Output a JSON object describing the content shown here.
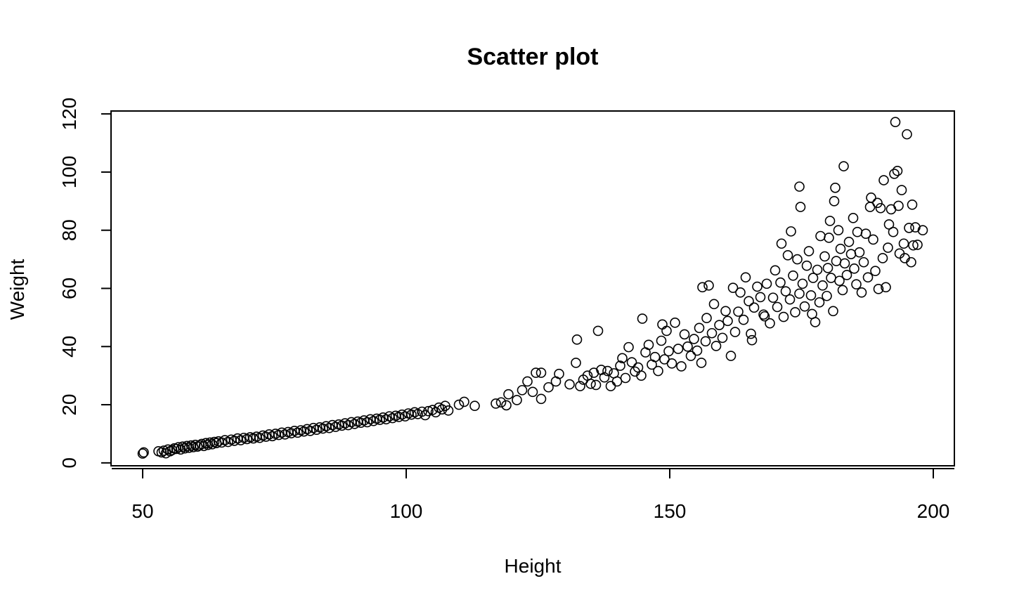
{
  "chart_data": {
    "type": "scatter",
    "title": "Scatter plot",
    "xlabel": "Height",
    "ylabel": "Weight",
    "xlim": [
      44,
      204
    ],
    "ylim": [
      -1,
      121
    ],
    "xticks": [
      50,
      100,
      150,
      200
    ],
    "yticks": [
      0,
      20,
      40,
      60,
      80,
      100,
      120
    ],
    "grid": false,
    "legend": "none",
    "marker": "open-circle",
    "colors": {
      "marker": "#000000",
      "axis": "#000000",
      "background": "#ffffff"
    },
    "points": [
      [
        50,
        3.2
      ],
      [
        50.2,
        3.6
      ],
      [
        53,
        4
      ],
      [
        53.6,
        3.6
      ],
      [
        54,
        4.2
      ],
      [
        54.4,
        3.3
      ],
      [
        54.8,
        4.6
      ],
      [
        55.2,
        4
      ],
      [
        55.6,
        4.4
      ],
      [
        56,
        5
      ],
      [
        56.4,
        4.8
      ],
      [
        56.8,
        5.4
      ],
      [
        57.2,
        4.6
      ],
      [
        57.6,
        5.6
      ],
      [
        58,
        5
      ],
      [
        58.4,
        5.8
      ],
      [
        58.8,
        5.2
      ],
      [
        59.2,
        6
      ],
      [
        59.6,
        5.4
      ],
      [
        60,
        6.2
      ],
      [
        60.4,
        5.6
      ],
      [
        60.8,
        6
      ],
      [
        61.2,
        6.5
      ],
      [
        61.6,
        5.8
      ],
      [
        62,
        6.8
      ],
      [
        62.4,
        6.2
      ],
      [
        62.8,
        7
      ],
      [
        63.2,
        6.4
      ],
      [
        63.6,
        7.2
      ],
      [
        64,
        6.8
      ],
      [
        64.4,
        7.4
      ],
      [
        65,
        7
      ],
      [
        65.6,
        7.8
      ],
      [
        66.2,
        7.2
      ],
      [
        66.8,
        8
      ],
      [
        67.4,
        7.6
      ],
      [
        68,
        8.4
      ],
      [
        68.6,
        7.8
      ],
      [
        69.2,
        8.6
      ],
      [
        69.8,
        8.2
      ],
      [
        70.4,
        8.8
      ],
      [
        71,
        8.4
      ],
      [
        71.6,
        9
      ],
      [
        72.2,
        8.6
      ],
      [
        72.8,
        9.4
      ],
      [
        73.4,
        9
      ],
      [
        74,
        9.8
      ],
      [
        74.6,
        9.2
      ],
      [
        75.2,
        10
      ],
      [
        75.8,
        9.6
      ],
      [
        76.4,
        10.4
      ],
      [
        77,
        9.8
      ],
      [
        77.6,
        10.6
      ],
      [
        78.2,
        10.2
      ],
      [
        78.8,
        11
      ],
      [
        79.4,
        10.4
      ],
      [
        80,
        11.2
      ],
      [
        80.6,
        10.8
      ],
      [
        81.2,
        11.6
      ],
      [
        81.8,
        11
      ],
      [
        82.4,
        12
      ],
      [
        83,
        11.4
      ],
      [
        83.6,
        12.2
      ],
      [
        84.2,
        11.8
      ],
      [
        84.8,
        12.6
      ],
      [
        85.4,
        12
      ],
      [
        86,
        13
      ],
      [
        86.6,
        12.4
      ],
      [
        87.2,
        13.2
      ],
      [
        87.8,
        12.8
      ],
      [
        88.4,
        13.6
      ],
      [
        89,
        13
      ],
      [
        89.6,
        14
      ],
      [
        90.2,
        13.4
      ],
      [
        90.8,
        14.2
      ],
      [
        91.4,
        13.8
      ],
      [
        92,
        14.6
      ],
      [
        92.6,
        14
      ],
      [
        93.2,
        15
      ],
      [
        93.8,
        14.4
      ],
      [
        94.4,
        15.2
      ],
      [
        95,
        14.8
      ],
      [
        95.6,
        15.6
      ],
      [
        96.2,
        15
      ],
      [
        96.8,
        16
      ],
      [
        97.4,
        15.4
      ],
      [
        98,
        16.2
      ],
      [
        98.6,
        15.8
      ],
      [
        99.2,
        16.6
      ],
      [
        99.8,
        16
      ],
      [
        100.4,
        17
      ],
      [
        101,
        16.6
      ],
      [
        101.6,
        17.4
      ],
      [
        102.2,
        16.8
      ],
      [
        103,
        17.6
      ],
      [
        103.6,
        16.4
      ],
      [
        104.2,
        17.8
      ],
      [
        105,
        18.2
      ],
      [
        105.6,
        17.4
      ],
      [
        106.2,
        19
      ],
      [
        106.8,
        18.4
      ],
      [
        107.4,
        19.6
      ],
      [
        108,
        18
      ],
      [
        110,
        20
      ],
      [
        111,
        21
      ],
      [
        113,
        19.6
      ],
      [
        117,
        20.4
      ],
      [
        118,
        20.8
      ],
      [
        119,
        19.8
      ],
      [
        119.4,
        23.6
      ],
      [
        121,
        21.6
      ],
      [
        122,
        25
      ],
      [
        123,
        28
      ],
      [
        124,
        24.4
      ],
      [
        124.6,
        31
      ],
      [
        125.6,
        22
      ],
      [
        125.6,
        31
      ],
      [
        127,
        26
      ],
      [
        128.4,
        28
      ],
      [
        129,
        30.6
      ],
      [
        131,
        27
      ],
      [
        132.2,
        34.4
      ],
      [
        132.4,
        42.4
      ],
      [
        133,
        26.4
      ],
      [
        133.6,
        28.6
      ],
      [
        134.4,
        30
      ],
      [
        135,
        27.2
      ],
      [
        135.6,
        31
      ],
      [
        136,
        26.8
      ],
      [
        136.4,
        45.4
      ],
      [
        137,
        32
      ],
      [
        137.6,
        29.4
      ],
      [
        138.2,
        31.6
      ],
      [
        138.8,
        26.4
      ],
      [
        139.4,
        30.8
      ],
      [
        140,
        28
      ],
      [
        140.6,
        33.4
      ],
      [
        141,
        36
      ],
      [
        141.6,
        29.2
      ],
      [
        142.2,
        39.8
      ],
      [
        142.8,
        34.6
      ],
      [
        143.4,
        31.4
      ],
      [
        144,
        32.8
      ],
      [
        144.6,
        30
      ],
      [
        144.8,
        49.6
      ],
      [
        145.4,
        38
      ],
      [
        146,
        40.6
      ],
      [
        146.6,
        33.8
      ],
      [
        147.2,
        36.4
      ],
      [
        147.8,
        31.6
      ],
      [
        148.4,
        42
      ],
      [
        148.6,
        47.6
      ],
      [
        149,
        35.6
      ],
      [
        149.4,
        45.4
      ],
      [
        149.8,
        38.4
      ],
      [
        150.4,
        34.2
      ],
      [
        151,
        48.2
      ],
      [
        151.6,
        39.2
      ],
      [
        152.2,
        33.2
      ],
      [
        152.8,
        44.2
      ],
      [
        153.4,
        40
      ],
      [
        154,
        36.8
      ],
      [
        154.6,
        42.6
      ],
      [
        155.2,
        38.6
      ],
      [
        155.6,
        46.4
      ],
      [
        156,
        34.4
      ],
      [
        156.2,
        60.4
      ],
      [
        156.8,
        41.8
      ],
      [
        157,
        49.8
      ],
      [
        157.4,
        61
      ],
      [
        158,
        44.6
      ],
      [
        158.4,
        54.6
      ],
      [
        158.8,
        40.2
      ],
      [
        159.4,
        47.4
      ],
      [
        160,
        43
      ],
      [
        160.6,
        52.2
      ],
      [
        161,
        48.8
      ],
      [
        161.6,
        36.8
      ],
      [
        162,
        60.2
      ],
      [
        162.4,
        45
      ],
      [
        163,
        52
      ],
      [
        163.4,
        58.6
      ],
      [
        164,
        49.2
      ],
      [
        164.4,
        63.8
      ],
      [
        165,
        55.6
      ],
      [
        165.4,
        44.4
      ],
      [
        165.6,
        42.2
      ],
      [
        166,
        53.4
      ],
      [
        166.6,
        60.6
      ],
      [
        167.2,
        57
      ],
      [
        167.8,
        51
      ],
      [
        168,
        50.4
      ],
      [
        168.4,
        61.6
      ],
      [
        169,
        48
      ],
      [
        169.6,
        56.8
      ],
      [
        170,
        66.2
      ],
      [
        170.4,
        53.6
      ],
      [
        171,
        62
      ],
      [
        171.2,
        75.4
      ],
      [
        171.6,
        50.2
      ],
      [
        172,
        59
      ],
      [
        172.4,
        71.4
      ],
      [
        172.8,
        56.2
      ],
      [
        173,
        79.6
      ],
      [
        173.4,
        64.4
      ],
      [
        173.8,
        51.8
      ],
      [
        174.2,
        70
      ],
      [
        174.6,
        58.2
      ],
      [
        174.6,
        95
      ],
      [
        174.8,
        88
      ],
      [
        175.2,
        61.6
      ],
      [
        175.6,
        53.8
      ],
      [
        176,
        67.8
      ],
      [
        176.4,
        72.8
      ],
      [
        176.8,
        57.6
      ],
      [
        177,
        51.2
      ],
      [
        177.2,
        63.6
      ],
      [
        177.6,
        48.4
      ],
      [
        178,
        66.4
      ],
      [
        178.4,
        55.2
      ],
      [
        178.6,
        78
      ],
      [
        179,
        61
      ],
      [
        179.4,
        71
      ],
      [
        179.8,
        57.4
      ],
      [
        180,
        67
      ],
      [
        180.2,
        77.4
      ],
      [
        180.4,
        83.2
      ],
      [
        180.6,
        63.6
      ],
      [
        181,
        52.2
      ],
      [
        181.2,
        90
      ],
      [
        181.4,
        94.6
      ],
      [
        181.6,
        69.4
      ],
      [
        182,
        80
      ],
      [
        182.2,
        62.6
      ],
      [
        182.4,
        73.6
      ],
      [
        182.8,
        59.4
      ],
      [
        183,
        102
      ],
      [
        183.2,
        68.6
      ],
      [
        183.6,
        64.6
      ],
      [
        184,
        76
      ],
      [
        184.4,
        71.8
      ],
      [
        184.8,
        84.2
      ],
      [
        185,
        66.8
      ],
      [
        185.4,
        61.4
      ],
      [
        185.6,
        79.4
      ],
      [
        186,
        72.4
      ],
      [
        186.4,
        58.6
      ],
      [
        186.8,
        69
      ],
      [
        187.2,
        78.8
      ],
      [
        187.6,
        63.8
      ],
      [
        188,
        88
      ],
      [
        188.2,
        91.2
      ],
      [
        188.6,
        76.8
      ],
      [
        189,
        66
      ],
      [
        189.4,
        89.4
      ],
      [
        189.6,
        59.8
      ],
      [
        190,
        87.6
      ],
      [
        190.4,
        70.4
      ],
      [
        190.6,
        97.2
      ],
      [
        191,
        60.4
      ],
      [
        191.4,
        74
      ],
      [
        191.6,
        82
      ],
      [
        192,
        87.2
      ],
      [
        192.4,
        79.4
      ],
      [
        192.6,
        99.4
      ],
      [
        192.8,
        117.2
      ],
      [
        193.2,
        100.4
      ],
      [
        193.4,
        88.4
      ],
      [
        193.6,
        72
      ],
      [
        194,
        93.8
      ],
      [
        194.4,
        75.4
      ],
      [
        194.6,
        70.4
      ],
      [
        195,
        113
      ],
      [
        195.4,
        80.8
      ],
      [
        195.8,
        69
      ],
      [
        196,
        88.8
      ],
      [
        196.2,
        74.8
      ],
      [
        196.6,
        81
      ],
      [
        197,
        75
      ],
      [
        198,
        80
      ]
    ]
  }
}
